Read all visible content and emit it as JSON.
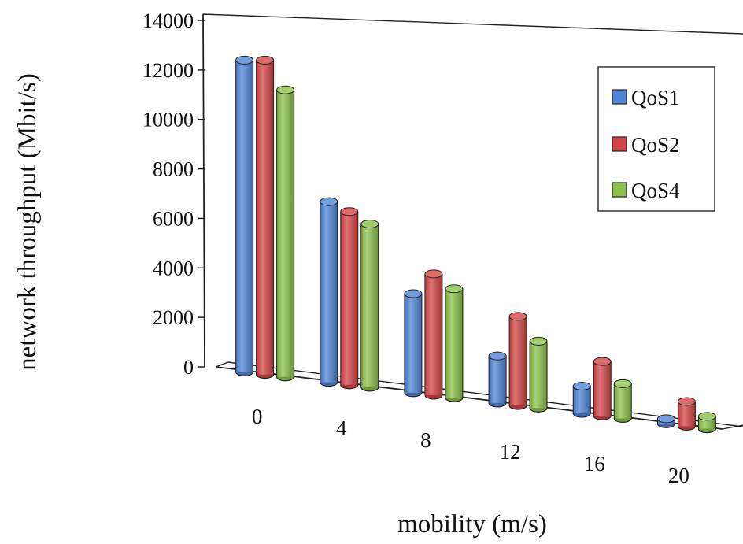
{
  "chart_data": {
    "type": "bar",
    "title": "",
    "xlabel": "mobility (m/s)",
    "ylabel": "network throughput (Mbit/s)",
    "ylim": [
      0,
      14000
    ],
    "yticks": [
      "0",
      "2000",
      "4000",
      "6000",
      "8000",
      "10000",
      "12000",
      "14000"
    ],
    "categories": [
      "0",
      "4",
      "8",
      "12",
      "16",
      "20"
    ],
    "series": [
      {
        "name": "QoS1",
        "color": "#4f86d8",
        "values": [
          12600,
          7300,
          4000,
          1900,
          1100,
          200
        ]
      },
      {
        "name": "QoS2",
        "color": "#d64545",
        "values": [
          12700,
          7000,
          4900,
          3600,
          2200,
          1000
        ]
      },
      {
        "name": "QoS4",
        "color": "#8bc34a",
        "values": [
          11600,
          6600,
          4400,
          2700,
          1400,
          500
        ]
      }
    ],
    "legend": "top-right",
    "grid": false,
    "style": "3d-cylinder"
  }
}
